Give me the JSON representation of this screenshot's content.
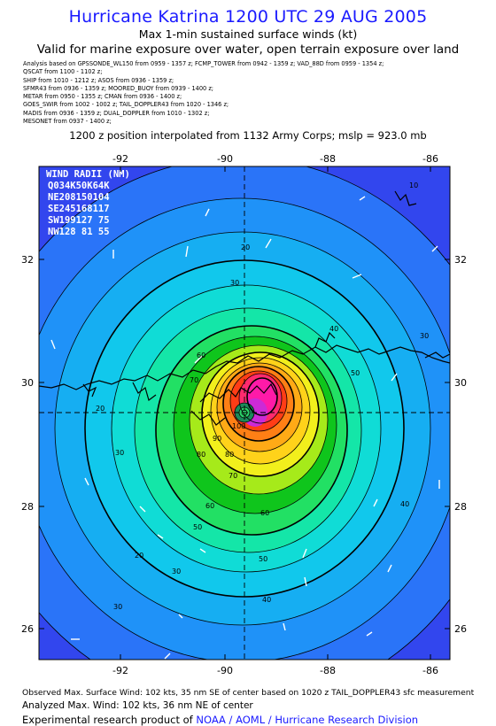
{
  "header": {
    "title": "Hurricane Katrina 1200 UTC 29 AUG 2005",
    "subtitle": "Max 1-min sustained surface winds (kt)",
    "valid": "Valid for marine exposure over water, open terrain exposure over land",
    "analysis_lines": [
      "Analysis based on  GPSSONDE_WL150 from 0959 - 1357 z;  FCMP_TOWER from 0942 - 1359 z;  VAD_88D from 0959 - 1354 z;",
      "QSCAT from 1100 - 1102 z;",
      "SHIP from 1010 - 1212 z;  ASOS from 0936 - 1359 z;",
      "SFMR43 from 0936 - 1359 z;  MOORED_BUOY from 0939 - 1400 z;",
      "METAR from 0950 - 1355 z;  CMAN from 0936 - 1400 z;",
      "GOES_SWIR from 1002 - 1002 z;  TAIL_DOPPLER43 from 1020 - 1346 z;",
      "MADIS from 0936 - 1359 z;  DUAL_DOPPLER from 1010 - 1302 z;",
      "MESONET from 0937 - 1400 z;"
    ],
    "position": "1200 z position interpolated from 1132 Army Corps; mslp = 923.0 mb"
  },
  "map": {
    "lon_ticks": [
      "-92",
      "-90",
      "-88",
      "-86"
    ],
    "lat_ticks": [
      "32",
      "30",
      "28",
      "26"
    ],
    "wind_radii": {
      "title": "WIND RADII (NM)",
      "header": "Q034K50K64K",
      "rows": [
        "NE208150104",
        "SE245168117",
        "SW199127 75",
        "NW128 81 55"
      ]
    },
    "contour_labels": [
      "10",
      "20",
      "30",
      "40",
      "50",
      "60",
      "70",
      "80",
      "90",
      "100",
      "30",
      "20",
      "30",
      "40",
      "50",
      "60",
      "70",
      "80",
      "60",
      "50",
      "40",
      "30",
      "20",
      "30"
    ],
    "colors": {
      "ocean_blue": "#3b4cf0",
      "core_magenta": "#ff1aa8"
    }
  },
  "footer": {
    "observed": "Observed Max. Surface Wind: 102 kts, 35 nm SE of center based on 1020 z TAIL_DOPPLER43 sfc measurement",
    "analyzed": "Analyzed Max. Wind: 102 kts, 36 nm NE of center",
    "experimental": "Experimental research product of ",
    "link": "NOAA / AOML / Hurricane Research Division"
  }
}
